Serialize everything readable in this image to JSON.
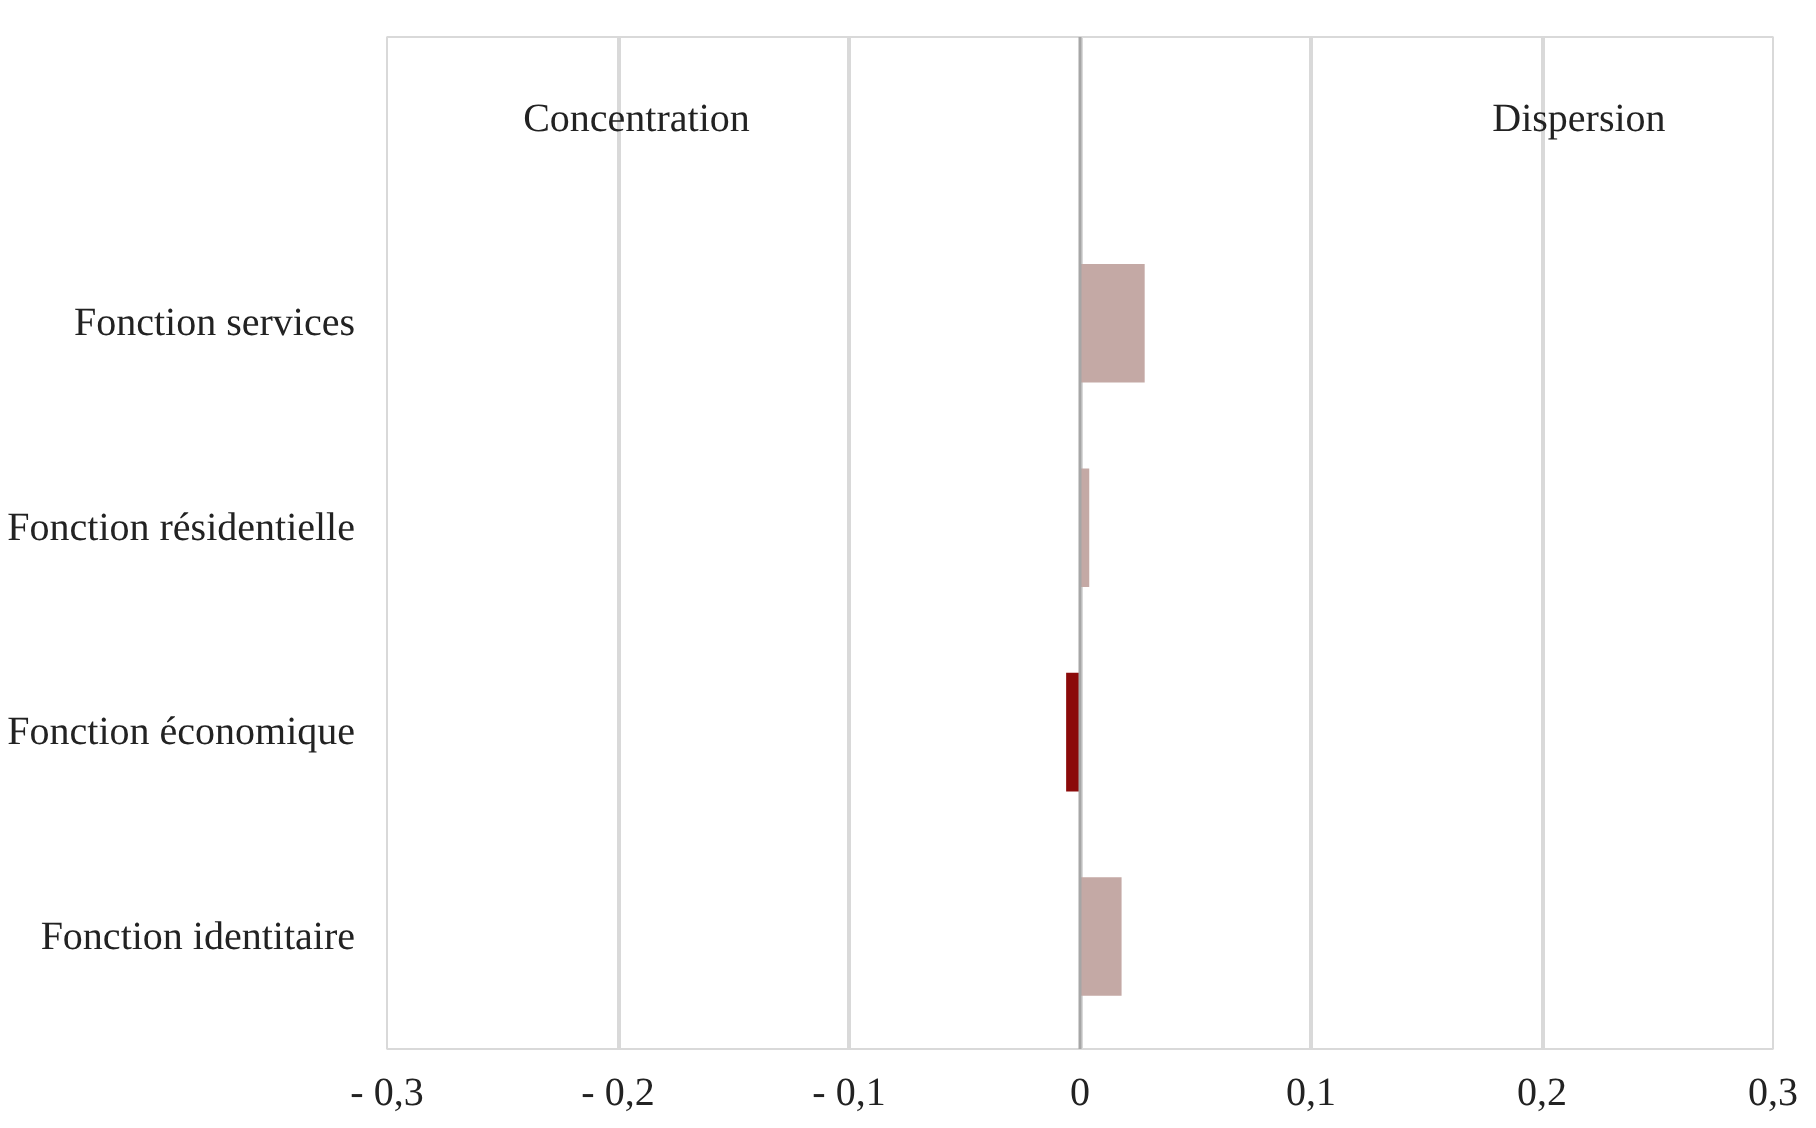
{
  "chart_data": {
    "type": "bar",
    "orientation": "horizontal",
    "categories": [
      "Fonction services",
      "Fonction résidentielle",
      "Fonction économique",
      "Fonction identitaire"
    ],
    "values": [
      0.028,
      0.004,
      -0.006,
      0.018
    ],
    "colors": [
      "#c4a9a5",
      "#c4a9a5",
      "#8b0a0a",
      "#c4a9a5"
    ],
    "xlim": [
      -0.3,
      0.3
    ],
    "xticks": [
      {
        "value": -0.3,
        "label": "- 0,3"
      },
      {
        "value": -0.2,
        "label": "- 0,2"
      },
      {
        "value": -0.1,
        "label": "- 0,1"
      },
      0,
      {
        "value": 0.1,
        "label": "0,1"
      },
      {
        "value": 0.2,
        "label": "0,2"
      },
      {
        "value": 0.3,
        "label": "0,3"
      }
    ],
    "annotations": [
      "Concentration",
      "Dispersion"
    ],
    "grid": "x"
  }
}
